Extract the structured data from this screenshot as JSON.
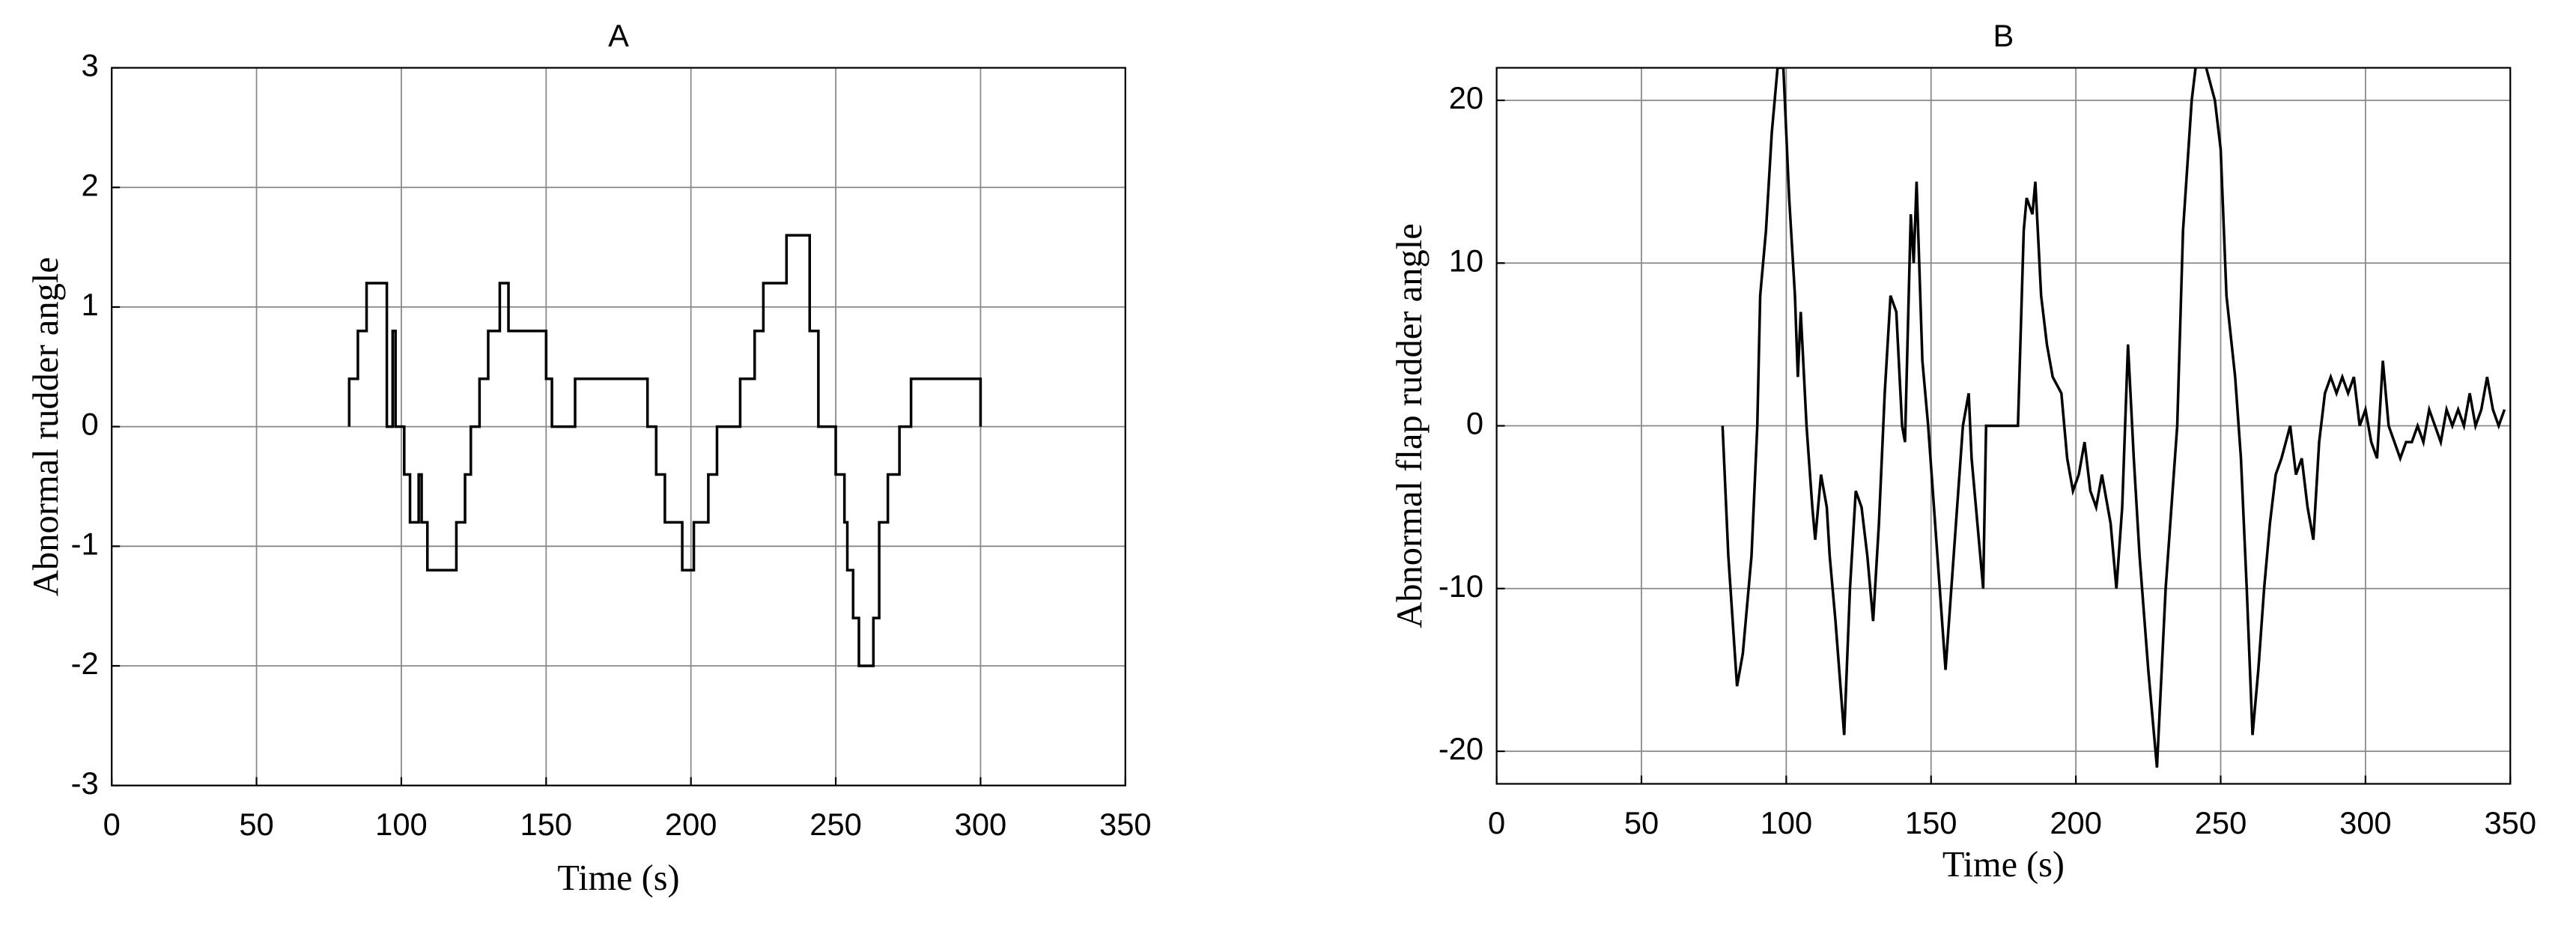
{
  "chart_data": [
    {
      "type": "line",
      "title": "A",
      "x_label": "Time (s)",
      "y_label": "Abnormal rudder angle",
      "xlim": [
        0,
        350
      ],
      "ylim": [
        -3,
        3
      ],
      "xticks": [
        0,
        50,
        100,
        150,
        200,
        250,
        300,
        350
      ],
      "yticks": [
        -3,
        -2,
        -1,
        0,
        1,
        2,
        3
      ],
      "grid": true,
      "x": [
        82,
        82,
        85,
        85,
        88,
        88,
        95,
        95,
        97,
        97,
        98,
        98,
        101,
        101,
        103,
        103,
        106,
        106,
        107,
        107,
        109,
        109,
        119,
        119,
        122,
        122,
        124,
        124,
        127,
        127,
        130,
        130,
        134,
        134,
        137,
        137,
        150,
        150,
        152,
        152,
        160,
        160,
        185,
        185,
        188,
        188,
        191,
        191,
        197,
        197,
        201,
        201,
        206,
        206,
        209,
        209,
        217,
        217,
        222,
        222,
        225,
        225,
        233,
        233,
        241,
        241,
        244,
        244,
        250,
        250,
        253,
        253,
        254,
        254,
        256,
        256,
        258,
        258,
        263,
        263,
        265,
        265,
        268,
        268,
        272,
        272,
        276,
        276,
        300,
        300
      ],
      "series": [
        {
          "color": "#000000",
          "values": [
            0,
            0.4,
            0.4,
            0.8,
            0.8,
            1.2,
            1.2,
            0,
            0,
            0.8,
            0.8,
            0,
            0,
            -0.4,
            -0.4,
            -0.8,
            -0.8,
            -0.4,
            -0.4,
            -0.8,
            -0.8,
            -1.2,
            -1.2,
            -0.8,
            -0.8,
            -0.4,
            -0.4,
            0,
            0,
            0.4,
            0.4,
            0.8,
            0.8,
            1.2,
            1.2,
            0.8,
            0.8,
            0.4,
            0.4,
            0,
            0,
            0.4,
            0.4,
            0,
            0,
            -0.4,
            -0.4,
            -0.8,
            -0.8,
            -1.2,
            -1.2,
            -0.8,
            -0.8,
            -0.4,
            -0.4,
            0,
            0,
            0.4,
            0.4,
            0.8,
            0.8,
            1.2,
            1.2,
            1.6,
            1.6,
            0.8,
            0.8,
            0,
            0,
            -0.4,
            -0.4,
            -0.8,
            -0.8,
            -1.2,
            -1.2,
            -1.6,
            -1.6,
            -2,
            -2,
            -1.6,
            -1.6,
            -0.8,
            -0.8,
            -0.4,
            -0.4,
            0,
            0,
            0.4,
            0.4,
            0
          ]
        }
      ]
    },
    {
      "type": "line",
      "title": "B",
      "x_label": "Time (s)",
      "y_label": "Abnormal flap rudder angle",
      "xlim": [
        0,
        350
      ],
      "ylim": [
        -22,
        22
      ],
      "xticks": [
        0,
        50,
        100,
        150,
        200,
        250,
        300,
        350
      ],
      "yticks": [
        -20,
        -10,
        0,
        10,
        20
      ],
      "grid": true,
      "x": [
        78,
        80,
        83,
        85,
        88,
        90,
        91,
        93,
        95,
        97,
        99,
        101,
        103,
        104,
        105,
        107,
        109,
        110,
        112,
        114,
        115,
        117,
        120,
        122,
        124,
        126,
        128,
        130,
        132,
        134,
        136,
        138,
        140,
        141,
        142,
        143,
        144,
        145,
        147,
        149,
        151,
        153,
        155,
        157,
        159,
        161,
        163,
        164,
        166,
        168,
        169,
        172,
        175,
        180,
        182,
        183,
        185,
        186,
        188,
        190,
        192,
        195,
        197,
        199,
        201,
        203,
        205,
        207,
        209,
        212,
        214,
        216,
        218,
        220,
        222,
        225,
        228,
        231,
        233,
        235,
        237,
        240,
        242,
        245,
        248,
        250,
        252,
        255,
        257,
        259,
        261,
        263,
        265,
        267,
        269,
        271,
        274,
        276,
        278,
        280,
        282,
        284,
        286,
        288,
        290,
        292,
        294,
        296,
        298,
        300,
        302,
        304,
        306,
        308,
        310,
        312,
        314,
        316,
        318,
        320,
        322,
        324,
        326,
        328,
        330,
        332,
        334,
        336,
        338,
        340,
        342,
        344,
        346,
        348
      ],
      "series": [
        {
          "color": "#000000",
          "values": [
            0,
            -8,
            -16,
            -14,
            -8,
            0,
            8,
            12,
            18,
            22,
            22,
            14,
            8,
            3,
            7,
            0,
            -5,
            -7,
            -3,
            -5,
            -8,
            -12,
            -19,
            -10,
            -4,
            -5,
            -8,
            -12,
            -6,
            2,
            8,
            7,
            0,
            -1,
            6,
            13,
            10,
            15,
            4,
            0,
            -5,
            -10,
            -15,
            -10,
            -5,
            0,
            2,
            -2,
            -6,
            -10,
            0,
            0,
            0,
            0,
            12,
            14,
            13,
            15,
            8,
            5,
            3,
            2,
            -2,
            -4,
            -3,
            -1,
            -4,
            -5,
            -3,
            -6,
            -10,
            -5,
            5,
            -2,
            -8,
            -15,
            -21,
            -10,
            -5,
            0,
            12,
            20,
            23,
            22,
            20,
            17,
            8,
            3,
            -2,
            -10,
            -19,
            -15,
            -10,
            -6,
            -3,
            -2,
            0,
            -3,
            -2,
            -5,
            -7,
            -1,
            2,
            3,
            2,
            3,
            2,
            3,
            0,
            1,
            -1,
            -2,
            4,
            0,
            -1,
            -2,
            -1,
            -1,
            0,
            -1,
            1,
            0,
            -1,
            1,
            0,
            1,
            0,
            2,
            0,
            1,
            3,
            1,
            0,
            1
          ]
        }
      ]
    }
  ]
}
